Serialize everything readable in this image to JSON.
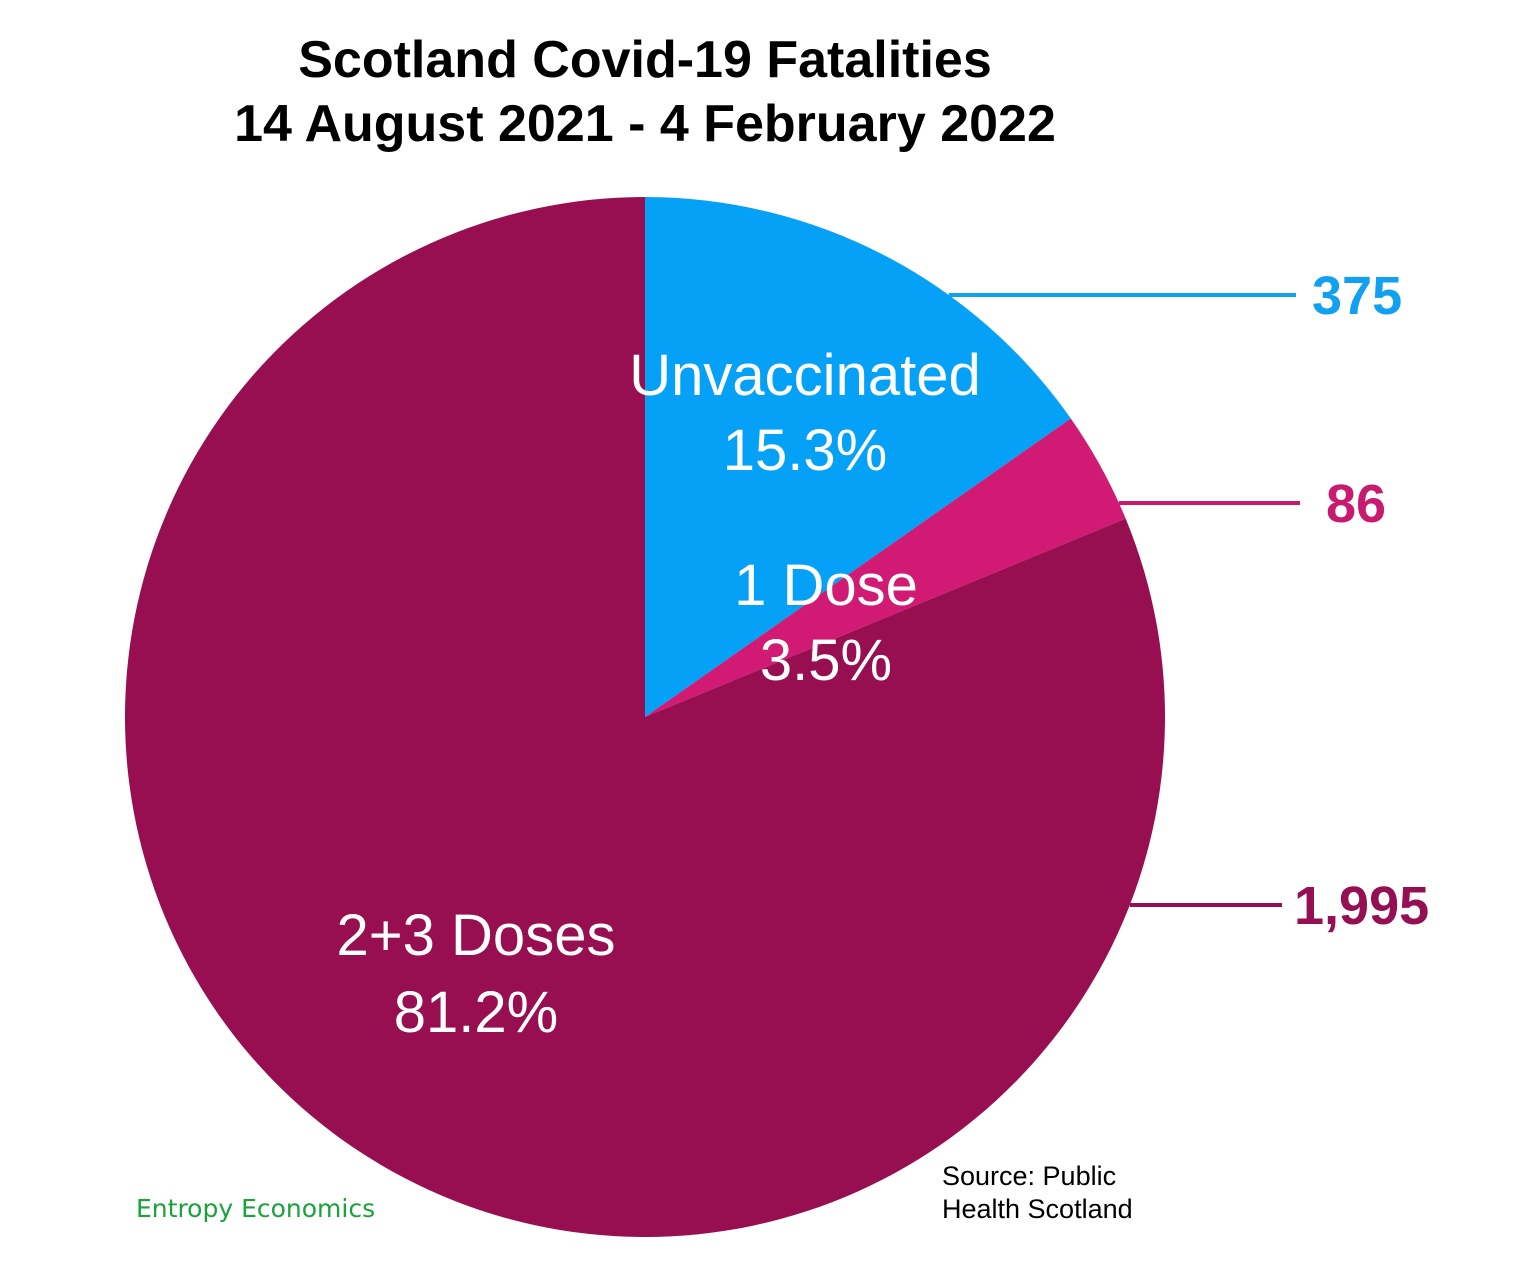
{
  "chart_data": {
    "type": "pie",
    "title_line1": "Scotland Covid-19 Fatalities",
    "title_line2": "14 August 2021 - 4 February 2022",
    "slices": [
      {
        "name": "Unvaccinated",
        "value": 375,
        "value_label": "375",
        "percent_label": "15.3%",
        "color": "#05a1f7",
        "value_color": "#12a0f0"
      },
      {
        "name": "1 Dose",
        "value": 86,
        "value_label": "86",
        "percent_label": "3.5%",
        "color": "#d01a73",
        "value_color": "#c81a6f"
      },
      {
        "name": "2+3 Doses",
        "value": 1995,
        "value_label": "1,995",
        "percent_label": "81.2%",
        "color": "#970f51",
        "value_color": "#941052"
      }
    ],
    "start_angle": "12 o'clock",
    "direction": "clockwise"
  },
  "source_line1": "Source: Public",
  "source_line2": "Health Scotland",
  "credit": "Entropy Economics"
}
